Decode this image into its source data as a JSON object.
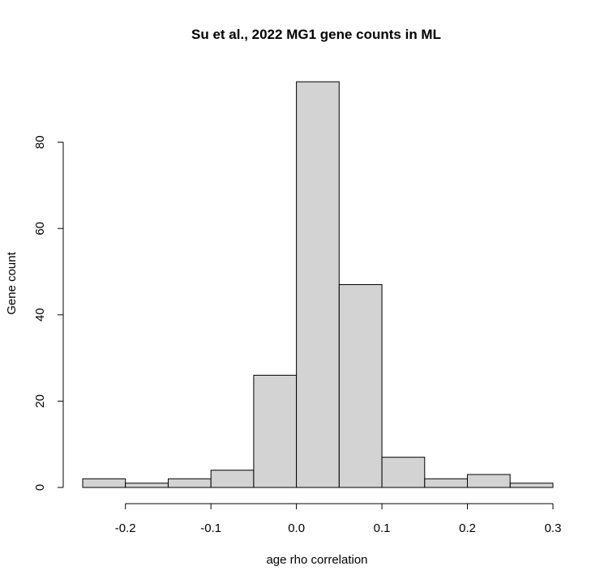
{
  "chart_data": {
    "type": "bar",
    "title": "Su et al., 2022 MG1 gene counts in ML",
    "xlabel": "age rho correlation",
    "ylabel": "Gene count",
    "bins": [
      {
        "x0": -0.25,
        "x1": -0.2,
        "count": 2
      },
      {
        "x0": -0.2,
        "x1": -0.15,
        "count": 1
      },
      {
        "x0": -0.15,
        "x1": -0.1,
        "count": 2
      },
      {
        "x0": -0.1,
        "x1": -0.05,
        "count": 4
      },
      {
        "x0": -0.05,
        "x1": 0.0,
        "count": 26
      },
      {
        "x0": 0.0,
        "x1": 0.05,
        "count": 94
      },
      {
        "x0": 0.05,
        "x1": 0.1,
        "count": 47
      },
      {
        "x0": 0.1,
        "x1": 0.15,
        "count": 7
      },
      {
        "x0": 0.15,
        "x1": 0.2,
        "count": 2
      },
      {
        "x0": 0.2,
        "x1": 0.25,
        "count": 3
      },
      {
        "x0": 0.25,
        "x1": 0.3,
        "count": 1
      }
    ],
    "x_ticks": [
      -0.2,
      -0.1,
      0.0,
      0.1,
      0.2,
      0.3
    ],
    "x_tick_labels": [
      "-0.2",
      "-0.1",
      "0.0",
      "0.1",
      "0.2",
      "0.3"
    ],
    "y_ticks": [
      0,
      20,
      40,
      60,
      80
    ],
    "y_tick_labels": [
      "0",
      "20",
      "40",
      "60",
      "80"
    ],
    "xlim": [
      -0.25,
      0.3
    ],
    "ylim": [
      0,
      94
    ],
    "grid": false,
    "colors": {
      "bar_fill": "#d3d3d3",
      "bar_stroke": "#000000"
    }
  }
}
